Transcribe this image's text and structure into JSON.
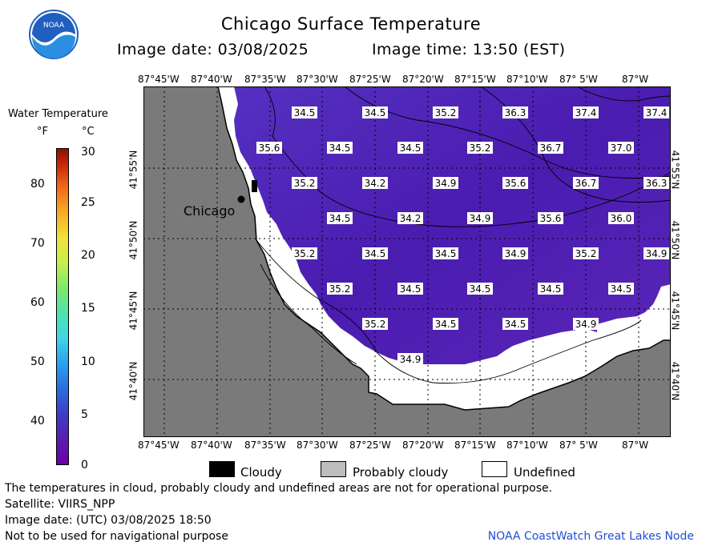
{
  "header": {
    "title": "Chicago Surface Temperature",
    "date_line": "Image date: 03/08/2025",
    "time_line": "Image time: 13:50 (EST)",
    "logo_text": "NOAA"
  },
  "map": {
    "lon_labels": [
      "87°45'W",
      "87°40'W",
      "87°35'W",
      "87°30'W",
      "87°25'W",
      "87°20'W",
      "87°15'W",
      "87°10'W",
      "87° 5'W",
      "87°W"
    ],
    "lat_labels": [
      "41°55'N",
      "41°50'N",
      "41°45'N",
      "41°40'N"
    ],
    "city_label": "Chicago",
    "colors": {
      "land": "#7a7a7a",
      "water": "#4a1cb0",
      "undefined": "#ffffff",
      "cloudy": "#000000"
    },
    "temperature_readings_f": [
      [
        "34.5",
        "34.5",
        "35.2",
        "36.3",
        "37.4",
        "37.4"
      ],
      [
        "35.6",
        "34.5",
        "34.5",
        "35.2",
        "36.7",
        "37.0"
      ],
      [
        "35.2",
        "34.2",
        "34.9",
        "35.6",
        "36.7",
        "36.3"
      ],
      [
        "34.5",
        "34.2",
        "34.9",
        "35.6",
        "36.0"
      ],
      [
        "35.2",
        "34.5",
        "34.5",
        "34.9",
        "35.2",
        "34.9"
      ],
      [
        "35.2",
        "34.5",
        "34.5",
        "34.5",
        "34.5"
      ],
      [
        "35.2",
        "34.5",
        "34.5",
        "34.9"
      ],
      [
        "34.9"
      ]
    ]
  },
  "legend": {
    "title": "Water Temperature",
    "unit_f": "°F",
    "unit_c": "°C",
    "f_ticks": [
      "80",
      "70",
      "60",
      "50",
      "40"
    ],
    "c_ticks": [
      "30",
      "25",
      "20",
      "15",
      "10",
      "5",
      "0"
    ]
  },
  "key": {
    "cloudy": "Cloudy",
    "probably_cloudy": "Probably cloudy",
    "undefined": "Undefined"
  },
  "footer": {
    "disclaimer": "The temperatures in cloud, probably cloudy and undefined areas are not for operational purpose.",
    "satellite": "Satellite: VIIRS_NPP",
    "utc_date": "Image date: (UTC) 03/08/2025  18:50",
    "navigation": "Not to be used for navigational purpose",
    "credit": "NOAA CoastWatch Great Lakes Node"
  }
}
